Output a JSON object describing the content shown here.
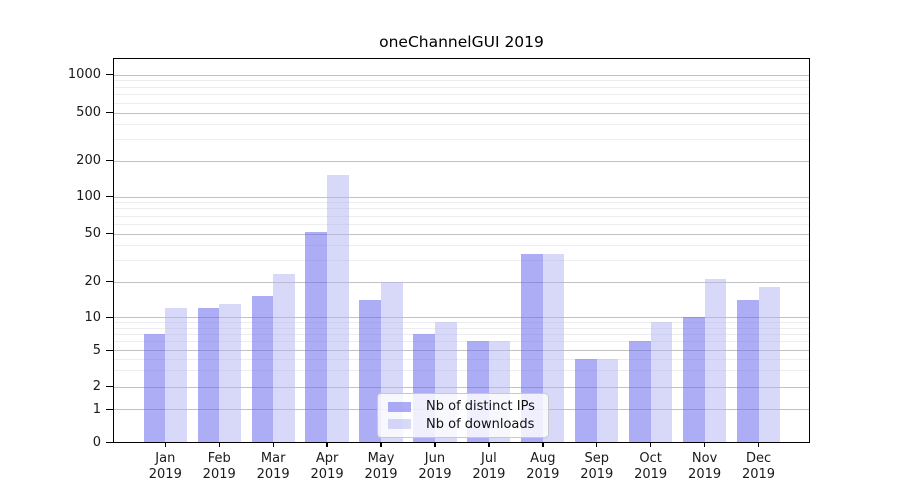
{
  "title": "oneChannelGUI 2019",
  "legend": {
    "items": [
      {
        "label": "Nb of distinct IPs"
      },
      {
        "label": "Nb of downloads"
      }
    ]
  },
  "chart_data": {
    "type": "bar",
    "title": "oneChannelGUI 2019",
    "categories": [
      "Jan",
      "Feb",
      "Mar",
      "Apr",
      "May",
      "Jun",
      "Jul",
      "Aug",
      "Sep",
      "Oct",
      "Nov",
      "Dec"
    ],
    "year": "2019",
    "series": [
      {
        "name": "Nb of distinct IPs",
        "color": "#6969ee",
        "alpha": 0.55,
        "values": [
          7,
          12,
          15,
          51,
          14,
          7,
          6,
          34,
          4,
          6,
          10,
          14
        ]
      },
      {
        "name": "Nb of downloads",
        "color": "#b2b2f2",
        "alpha": 0.5,
        "values": [
          12,
          13,
          23,
          152,
          20,
          9,
          6,
          34,
          4,
          9,
          21,
          18
        ]
      }
    ],
    "y_ticks": [
      0,
      1,
      2,
      5,
      10,
      20,
      50,
      100,
      200,
      500,
      1000
    ],
    "y_minor_gridlines": [
      3,
      4,
      6,
      7,
      8,
      9,
      30,
      40,
      60,
      70,
      80,
      90,
      300,
      400,
      600,
      700,
      800,
      900
    ],
    "xlabel": "",
    "ylabel": "",
    "y_scale": "log-like",
    "grid": true,
    "legend_position": "lower center"
  },
  "colors": {
    "distinct_ips": "#6969ee",
    "downloads": "#b2b2f2",
    "grid_major": "#c2c2c2",
    "grid_minor": "#ededed"
  }
}
